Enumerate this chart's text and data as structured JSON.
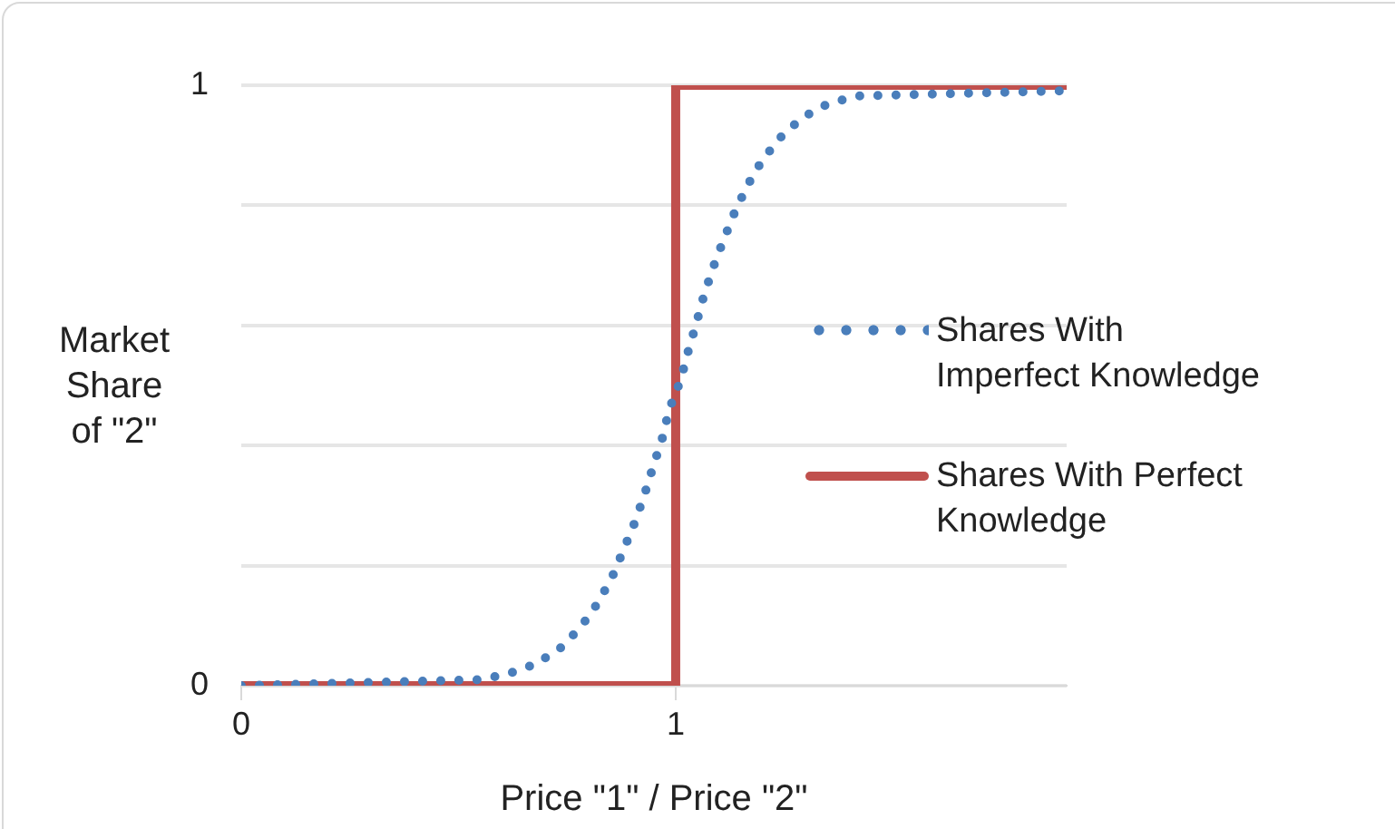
{
  "chart_data": {
    "type": "line",
    "xlabel": "Price \"1\" / Price \"2\"",
    "ylabel": "Market Share of \"2\"",
    "xlim": [
      0,
      1.9
    ],
    "xticks": [
      0,
      1
    ],
    "ylim": [
      0,
      1
    ],
    "yticks": [
      0,
      {
        "value": 0.2,
        "label": null
      },
      {
        "value": 0.4,
        "label": null
      },
      {
        "value": 0.6,
        "label": null
      },
      {
        "value": 0.8,
        "label": null
      },
      1
    ],
    "grid": "y",
    "legend": "right",
    "marker": "none",
    "series": [
      {
        "name": "Shares With Imperfect Knowledge",
        "color": "#4a7ebb",
        "line_style": "dotted",
        "x": [
          0,
          0.55,
          0.615,
          0.678,
          0.737,
          0.783,
          0.822,
          0.855,
          0.881,
          0.907,
          0.929,
          0.949,
          0.97,
          0.985,
          1.011,
          1.028,
          1.047,
          1.065,
          1.086,
          1.11,
          1.135,
          1.165,
          1.199,
          1.241,
          1.291,
          1.35,
          1.416,
          1.9
        ],
        "values": [
          0,
          0.01,
          0.02,
          0.036,
          0.064,
          0.099,
          0.139,
          0.183,
          0.228,
          0.274,
          0.32,
          0.367,
          0.414,
          0.46,
          0.508,
          0.555,
          0.602,
          0.65,
          0.696,
          0.742,
          0.787,
          0.833,
          0.875,
          0.913,
          0.946,
          0.969,
          0.982,
          0.991
        ]
      },
      {
        "name": "Shares With Perfect Knowledge",
        "color": "#c0504d",
        "line_style": "solid",
        "x": [
          0,
          1,
          1,
          1.9
        ],
        "values": [
          0,
          0,
          1,
          1
        ]
      }
    ]
  }
}
